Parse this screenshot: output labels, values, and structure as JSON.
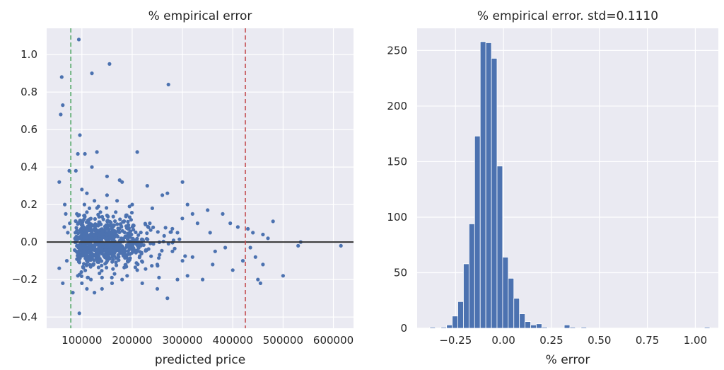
{
  "chart_data": [
    {
      "type": "scatter",
      "title": "% empirical error",
      "xlabel": "predicted price",
      "ylabel": "",
      "xlim": [
        30000,
        640000
      ],
      "ylim": [
        -0.46,
        1.14
      ],
      "x_ticks": [
        100000,
        200000,
        300000,
        400000,
        500000,
        600000
      ],
      "x_tick_labels": [
        "100000",
        "200000",
        "300000",
        "400000",
        "500000",
        "600000"
      ],
      "y_ticks": [
        -0.4,
        -0.2,
        0.0,
        0.2,
        0.4,
        0.6,
        0.8,
        1.0
      ],
      "y_tick_labels": [
        "−0.4",
        "−0.2",
        "0.0",
        "0.2",
        "0.4",
        "0.6",
        "0.8",
        "1.0"
      ],
      "grid": true,
      "colors": {
        "points": "#4c72b0",
        "zero_line": "#333333",
        "green_line": "#55a868",
        "red_line": "#c44e52",
        "background": "#eaeaf2"
      },
      "reference_lines": [
        {
          "orientation": "horizontal",
          "y": 0.0,
          "style": "solid"
        },
        {
          "orientation": "vertical",
          "x": 78000,
          "style": "dashed",
          "color": "green"
        },
        {
          "orientation": "vertical",
          "x": 425000,
          "style": "dashed",
          "color": "red"
        }
      ],
      "points": [
        [
          94000,
          1.08
        ],
        [
          60000,
          0.88
        ],
        [
          62000,
          0.73
        ],
        [
          58000,
          0.68
        ],
        [
          155000,
          0.95
        ],
        [
          120000,
          0.9
        ],
        [
          272000,
          0.84
        ],
        [
          55000,
          0.32
        ],
        [
          210000,
          0.48
        ],
        [
          96000,
          0.57
        ],
        [
          92000,
          0.47
        ],
        [
          106000,
          0.47
        ],
        [
          130000,
          0.48
        ],
        [
          75000,
          0.38
        ],
        [
          88000,
          0.38
        ],
        [
          120000,
          0.4
        ],
        [
          100000,
          0.28
        ],
        [
          110000,
          0.26
        ],
        [
          125000,
          0.22
        ],
        [
          150000,
          0.35
        ],
        [
          175000,
          0.33
        ],
        [
          180000,
          0.32
        ],
        [
          230000,
          0.3
        ],
        [
          260000,
          0.25
        ],
        [
          270000,
          0.26
        ],
        [
          300000,
          0.32
        ],
        [
          310000,
          0.2
        ],
        [
          320000,
          0.15
        ],
        [
          350000,
          0.17
        ],
        [
          380000,
          0.15
        ],
        [
          395000,
          0.1
        ],
        [
          410000,
          0.08
        ],
        [
          430000,
          0.07
        ],
        [
          440000,
          0.05
        ],
        [
          460000,
          0.04
        ],
        [
          480000,
          0.11
        ],
        [
          470000,
          0.02
        ],
        [
          445000,
          -0.08
        ],
        [
          460000,
          -0.12
        ],
        [
          500000,
          -0.18
        ],
        [
          530000,
          -0.02
        ],
        [
          535000,
          0.0
        ],
        [
          615000,
          -0.02
        ],
        [
          450000,
          -0.2
        ],
        [
          455000,
          -0.22
        ],
        [
          435000,
          -0.03
        ],
        [
          420000,
          -0.1
        ],
        [
          400000,
          -0.15
        ],
        [
          360000,
          -0.12
        ],
        [
          340000,
          -0.2
        ],
        [
          310000,
          -0.18
        ],
        [
          290000,
          -0.2
        ],
        [
          270000,
          -0.3
        ],
        [
          250000,
          -0.25
        ],
        [
          220000,
          -0.22
        ],
        [
          180000,
          -0.2
        ],
        [
          160000,
          -0.22
        ],
        [
          140000,
          -0.25
        ],
        [
          125000,
          -0.27
        ],
        [
          110000,
          -0.25
        ],
        [
          95000,
          -0.38
        ],
        [
          82000,
          -0.27
        ],
        [
          62000,
          -0.22
        ],
        [
          55000,
          -0.14
        ],
        [
          70000,
          -0.1
        ],
        [
          72000,
          0.05
        ],
        [
          76000,
          0.1
        ],
        [
          66000,
          0.2
        ],
        [
          68000,
          0.15
        ],
        [
          65000,
          0.08
        ],
        [
          330000,
          0.1
        ],
        [
          355000,
          0.05
        ],
        [
          365000,
          -0.05
        ],
        [
          385000,
          -0.03
        ],
        [
          300000,
          -0.1
        ],
        [
          320000,
          -0.08
        ],
        [
          290000,
          0.05
        ],
        [
          280000,
          -0.05
        ],
        [
          240000,
          0.18
        ],
        [
          235000,
          0.1
        ],
        [
          250000,
          -0.12
        ],
        [
          200000,
          0.2
        ],
        [
          210000,
          -0.15
        ],
        [
          190000,
          -0.18
        ],
        [
          170000,
          0.22
        ],
        [
          165000,
          -0.17
        ],
        [
          150000,
          0.25
        ],
        [
          140000,
          -0.19
        ],
        [
          115000,
          0.18
        ],
        [
          118000,
          -0.2
        ],
        [
          105000,
          0.2
        ],
        [
          100000,
          -0.22
        ],
        [
          90000,
          0.15
        ],
        [
          92000,
          -0.18
        ],
        [
          87000,
          0.05
        ],
        [
          89000,
          -0.05
        ]
      ],
      "dense_cluster": {
        "x_range": [
          85000,
          260000
        ],
        "y_range": [
          -0.14,
          0.14
        ],
        "count": 900
      }
    },
    {
      "type": "bar",
      "subtype": "histogram",
      "title": "% empirical error. std=0.1110",
      "xlabel": "% error",
      "ylabel": "",
      "xlim": [
        -0.45,
        1.12
      ],
      "ylim": [
        0,
        270
      ],
      "x_ticks": [
        -0.25,
        0.0,
        0.25,
        0.5,
        0.75,
        1.0
      ],
      "x_tick_labels": [
        "−0.25",
        "0.00",
        "0.25",
        "0.50",
        "0.75",
        "1.00"
      ],
      "y_ticks": [
        0,
        50,
        100,
        150,
        200,
        250
      ],
      "y_tick_labels": [
        "0",
        "50",
        "100",
        "150",
        "200",
        "250"
      ],
      "grid": true,
      "colors": {
        "bars": "#4c72b0",
        "background": "#eaeaf2"
      },
      "bin_start": -0.384,
      "bin_width": 0.0292,
      "counts": [
        1,
        0,
        1,
        3,
        11,
        24,
        58,
        94,
        173,
        258,
        257,
        243,
        146,
        64,
        45,
        27,
        13,
        6,
        3,
        4,
        1,
        0,
        0,
        0,
        3,
        1,
        0,
        1,
        0,
        0,
        0,
        0,
        0,
        0,
        0,
        0,
        0,
        0,
        0,
        0,
        0,
        0,
        0,
        0,
        0,
        0,
        0,
        0,
        0,
        1
      ]
    }
  ]
}
